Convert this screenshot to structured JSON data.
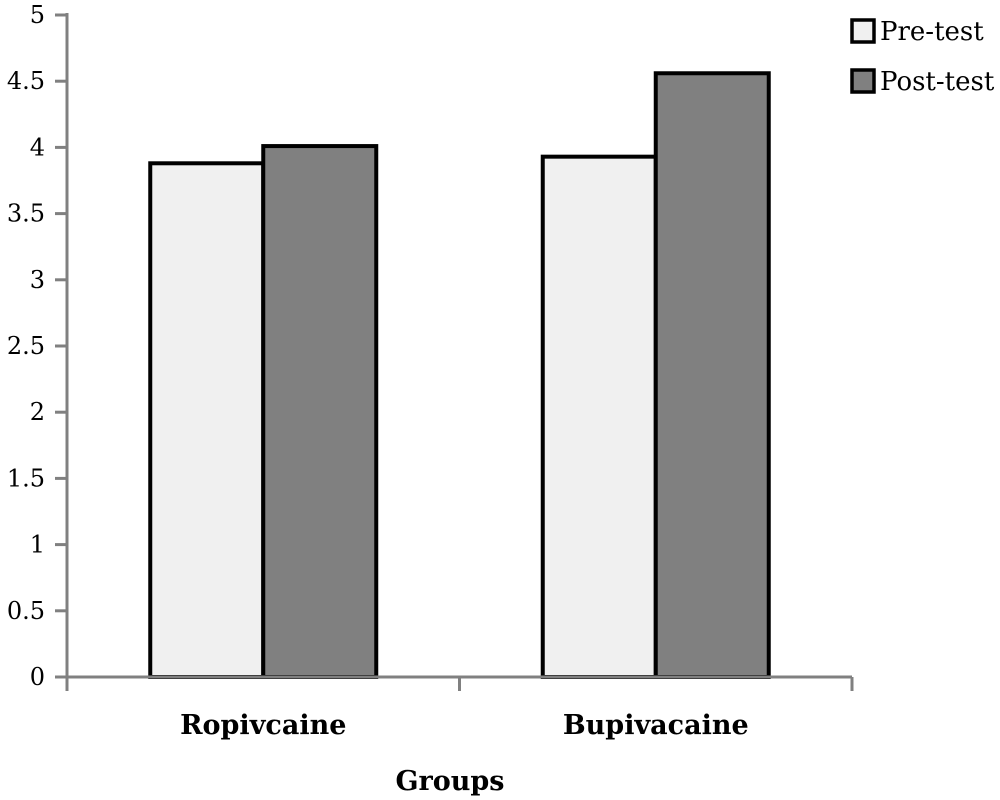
{
  "chart_data": {
    "type": "bar",
    "title": "",
    "xlabel": "Groups",
    "ylabel": "",
    "ylim": [
      0,
      5
    ],
    "yticks": [
      "0",
      "0.5",
      "1",
      "1.5",
      "2",
      "2.5",
      "3",
      "3.5",
      "4",
      "4.5",
      "5"
    ],
    "categories": [
      "Ropivcaine",
      "Bupivacaine"
    ],
    "series": [
      {
        "name": "Pre-test",
        "values": [
          3.88,
          3.93
        ],
        "color": "#f0f0f0"
      },
      {
        "name": "Post-test",
        "values": [
          4.01,
          4.56
        ],
        "color": "#808080"
      }
    ],
    "grid": false,
    "legend_position": "top-right"
  }
}
